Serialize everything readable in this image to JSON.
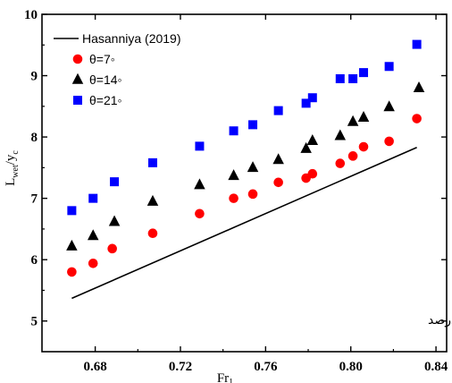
{
  "chart_data": {
    "type": "scatter",
    "xlabel": "Fr",
    "xlabel_sub": "1",
    "ylabel": "L",
    "ylabel_sub": "wet",
    "ylabel_tail": "/y",
    "ylabel_tail_sub": "c",
    "xlim": [
      0.655,
      0.845
    ],
    "ylim": [
      4.5,
      10
    ],
    "xticks": [
      0.68,
      0.72,
      0.76,
      0.8,
      0.84
    ],
    "xtick_labels": [
      "0.68",
      "0.72",
      "0.76",
      "0.80",
      "0.84"
    ],
    "yticks": [
      5,
      6,
      7,
      8,
      9,
      10
    ],
    "ytick_labels": [
      "5",
      "6",
      "7",
      "8",
      "9",
      "10"
    ],
    "annotation": "الـف) تخلخـــل ۴۰ درصد",
    "legend_position": "top-left",
    "line": {
      "name": "Hasanniya (2019)",
      "color": "#000000",
      "x": [
        0.669,
        0.831
      ],
      "y": [
        5.37,
        7.83
      ]
    },
    "series": [
      {
        "name": "θ=7◦",
        "marker": "circle",
        "color": "#ff0000",
        "x": [
          0.669,
          0.679,
          0.688,
          0.707,
          0.729,
          0.745,
          0.754,
          0.766,
          0.779,
          0.782,
          0.795,
          0.801,
          0.806,
          0.818,
          0.831
        ],
        "y": [
          5.8,
          5.94,
          6.18,
          6.43,
          6.75,
          7.0,
          7.07,
          7.26,
          7.33,
          7.4,
          7.57,
          7.69,
          7.84,
          7.93,
          8.3
        ]
      },
      {
        "name": "θ=14◦",
        "marker": "triangle",
        "color": "#000000",
        "x": [
          0.669,
          0.679,
          0.689,
          0.707,
          0.729,
          0.745,
          0.754,
          0.766,
          0.779,
          0.782,
          0.795,
          0.801,
          0.806,
          0.818,
          0.832
        ],
        "y": [
          6.22,
          6.39,
          6.62,
          6.95,
          7.22,
          7.37,
          7.5,
          7.63,
          7.81,
          7.94,
          8.02,
          8.25,
          8.32,
          8.49,
          8.8
        ]
      },
      {
        "name": "θ=21◦",
        "marker": "square",
        "color": "#0000ff",
        "x": [
          0.669,
          0.679,
          0.689,
          0.707,
          0.729,
          0.745,
          0.754,
          0.766,
          0.779,
          0.782,
          0.795,
          0.801,
          0.806,
          0.818,
          0.831
        ],
        "y": [
          6.8,
          7.0,
          7.27,
          7.58,
          7.85,
          8.1,
          8.2,
          8.43,
          8.55,
          8.64,
          8.95,
          8.95,
          9.05,
          9.15,
          9.51
        ]
      }
    ]
  }
}
